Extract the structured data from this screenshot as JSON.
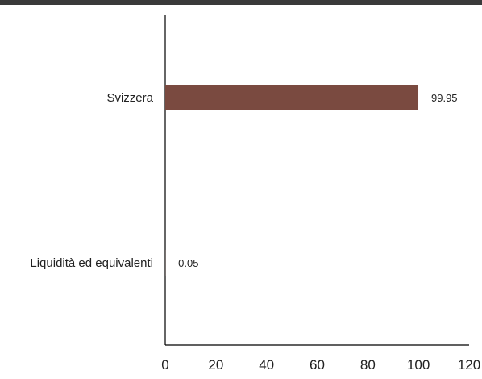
{
  "colors": {
    "top_rule": "#3a3a3a",
    "bar": "#7a4a40",
    "axis": "#000000"
  },
  "chart_data": {
    "type": "bar",
    "orientation": "horizontal",
    "categories": [
      "Svizzera",
      "Liquidità ed equivalenti"
    ],
    "values": [
      99.95,
      0.05
    ],
    "data_labels": [
      "99.95",
      "0.05"
    ],
    "xlim": [
      0,
      120
    ],
    "x_ticks": [
      0,
      20,
      40,
      60,
      80,
      100,
      120
    ],
    "x_tick_labels": [
      "0",
      "20",
      "40",
      "60",
      "80",
      "100",
      "120"
    ],
    "title": "",
    "xlabel": "",
    "ylabel": "",
    "grid": false,
    "legend": "none"
  }
}
